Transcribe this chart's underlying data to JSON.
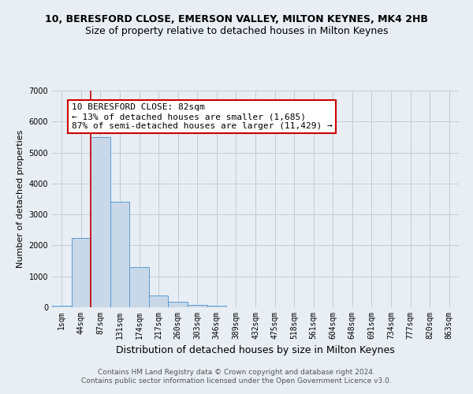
{
  "title": "10, BERESFORD CLOSE, EMERSON VALLEY, MILTON KEYNES, MK4 2HB",
  "subtitle": "Size of property relative to detached houses in Milton Keynes",
  "xlabel": "Distribution of detached houses by size in Milton Keynes",
  "ylabel": "Number of detached properties",
  "categories": [
    "1sqm",
    "44sqm",
    "87sqm",
    "131sqm",
    "174sqm",
    "217sqm",
    "260sqm",
    "303sqm",
    "346sqm",
    "389sqm",
    "432sqm",
    "475sqm",
    "518sqm",
    "561sqm",
    "604sqm",
    "648sqm",
    "691sqm",
    "734sqm",
    "777sqm",
    "820sqm",
    "863sqm"
  ],
  "values": [
    50,
    2250,
    5500,
    3400,
    1300,
    380,
    170,
    70,
    55,
    0,
    0,
    0,
    0,
    0,
    0,
    0,
    0,
    0,
    0,
    0,
    0
  ],
  "bar_color": "#c8d8e8",
  "bar_edge_color": "#5b9bd5",
  "bg_color": "#e8eef4",
  "grid_color": "#c0ccd8",
  "vline_color": "#cc0000",
  "vline_x_index": 2,
  "annotation_text": "10 BERESFORD CLOSE: 82sqm\n← 13% of detached houses are smaller (1,685)\n87% of semi-detached houses are larger (11,429) →",
  "annotation_box_color": "#ffffff",
  "annotation_box_edge": "#cc0000",
  "ylim": [
    0,
    7000
  ],
  "yticks": [
    0,
    1000,
    2000,
    3000,
    4000,
    5000,
    6000,
    7000
  ],
  "footnote": "Contains HM Land Registry data © Crown copyright and database right 2024.\nContains public sector information licensed under the Open Government Licence v3.0.",
  "title_fontsize": 9,
  "subtitle_fontsize": 9,
  "xlabel_fontsize": 9,
  "ylabel_fontsize": 8,
  "tick_fontsize": 7,
  "annot_fontsize": 8,
  "footnote_fontsize": 6.5
}
